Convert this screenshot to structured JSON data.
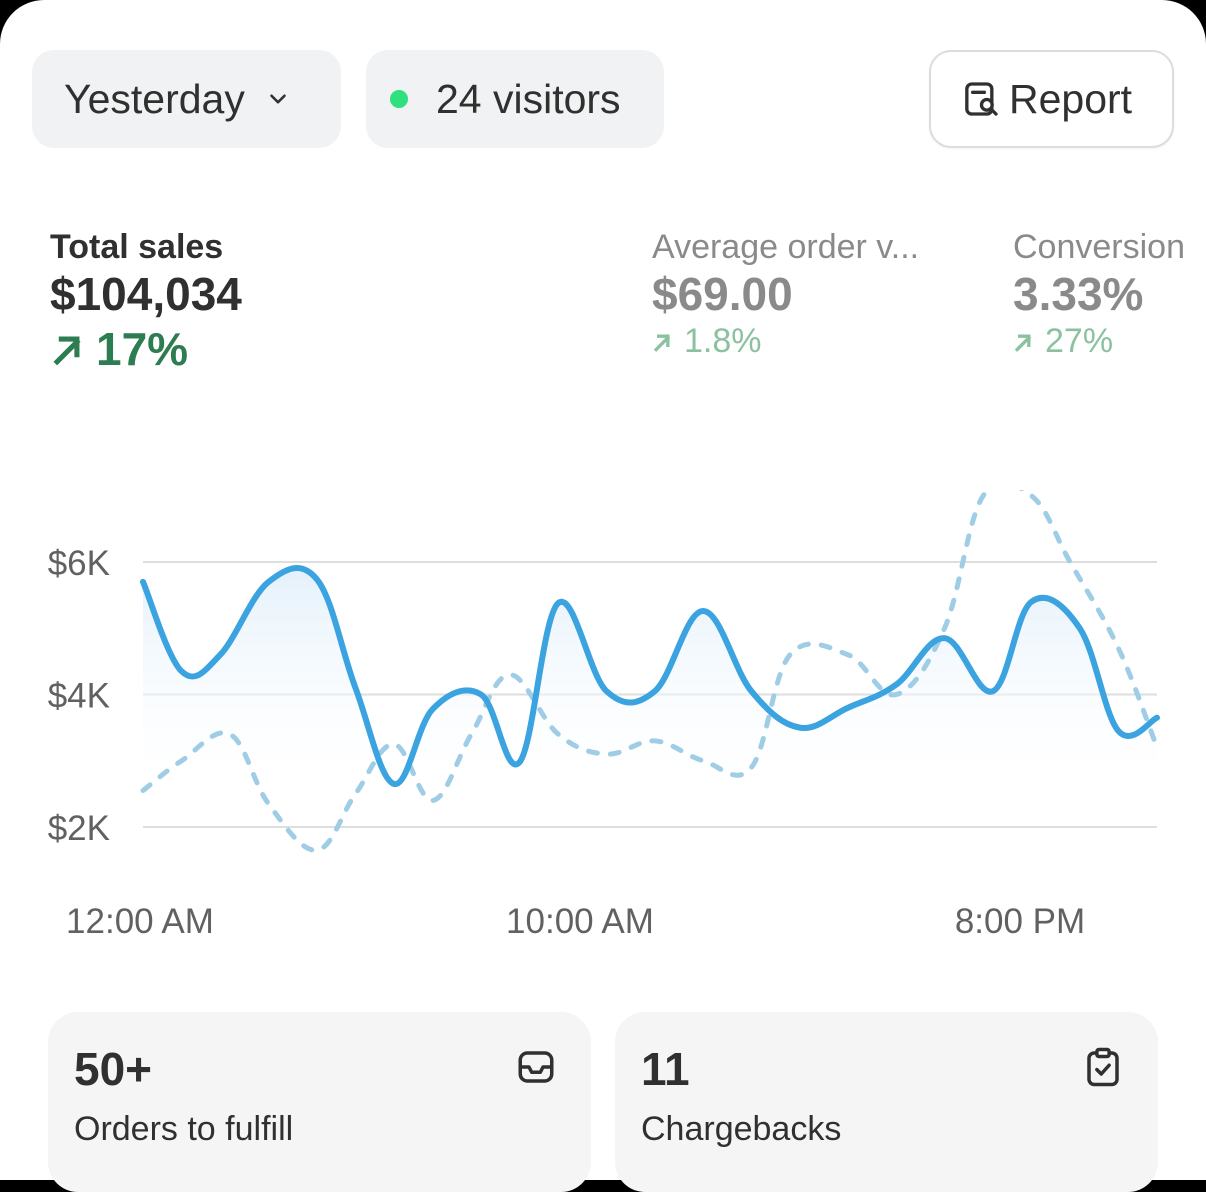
{
  "toolbar": {
    "date_range": "Yesterday",
    "visitors": "24 visitors",
    "report_label": "Report"
  },
  "metrics": [
    {
      "label": "Total sales",
      "value": "$104,034",
      "change": "17%"
    },
    {
      "label": "Average order v...",
      "value": "$69.00",
      "change": "1.8%"
    },
    {
      "label": "Conversion",
      "value": "3.33%",
      "change": "27%"
    }
  ],
  "colors": {
    "accent_line": "#3aa3e0",
    "comparison_line": "#9fcde6",
    "positive": "#2e7d52",
    "live_dot": "#2ee07e"
  },
  "chart_data": {
    "type": "line",
    "title": "",
    "y_tick_labels": [
      "$6K",
      "$4K",
      "$2K"
    ],
    "x_tick_labels": [
      "12:00 AM",
      "10:00 AM",
      "8:00 PM"
    ],
    "ylim": [
      2000,
      6000
    ],
    "grid": true,
    "series": [
      {
        "style": "solid",
        "points": [
          [
            0,
            5700
          ],
          [
            0.8,
            4350
          ],
          [
            1.6,
            4600
          ],
          [
            2.6,
            5700
          ],
          [
            3.6,
            5740
          ],
          [
            4.4,
            4100
          ],
          [
            5.2,
            2650
          ],
          [
            6.0,
            3780
          ],
          [
            7.0,
            4000
          ],
          [
            7.8,
            2980
          ],
          [
            8.6,
            5380
          ],
          [
            9.6,
            4050
          ],
          [
            10.6,
            4050
          ],
          [
            11.6,
            5260
          ],
          [
            12.6,
            4050
          ],
          [
            13.6,
            3500
          ],
          [
            14.6,
            3800
          ],
          [
            15.6,
            4150
          ],
          [
            16.6,
            4850
          ],
          [
            17.6,
            4050
          ],
          [
            18.4,
            5400
          ],
          [
            19.4,
            5000
          ],
          [
            20.2,
            3450
          ],
          [
            21,
            3650
          ]
        ]
      },
      {
        "style": "dotted",
        "points": [
          [
            0,
            2550
          ],
          [
            0.8,
            3000
          ],
          [
            1.8,
            3400
          ],
          [
            2.6,
            2350
          ],
          [
            3.6,
            1650
          ],
          [
            4.4,
            2500
          ],
          [
            5.2,
            3250
          ],
          [
            6.0,
            2400
          ],
          [
            6.8,
            3400
          ],
          [
            7.6,
            4300
          ],
          [
            8.6,
            3400
          ],
          [
            9.6,
            3100
          ],
          [
            10.6,
            3300
          ],
          [
            11.6,
            3000
          ],
          [
            12.6,
            2900
          ],
          [
            13.4,
            4600
          ],
          [
            14.6,
            4600
          ],
          [
            15.6,
            4000
          ],
          [
            16.6,
            5000
          ],
          [
            17.4,
            7000
          ],
          [
            18.4,
            7000
          ],
          [
            19.2,
            6000
          ],
          [
            20.2,
            4700
          ],
          [
            21,
            3200
          ]
        ]
      }
    ]
  },
  "tiles": [
    {
      "value": "50+",
      "label": "Orders to fulfill",
      "icon": "inbox-icon"
    },
    {
      "value": "11",
      "label": "Chargebacks",
      "icon": "clipboard-check-icon"
    }
  ]
}
